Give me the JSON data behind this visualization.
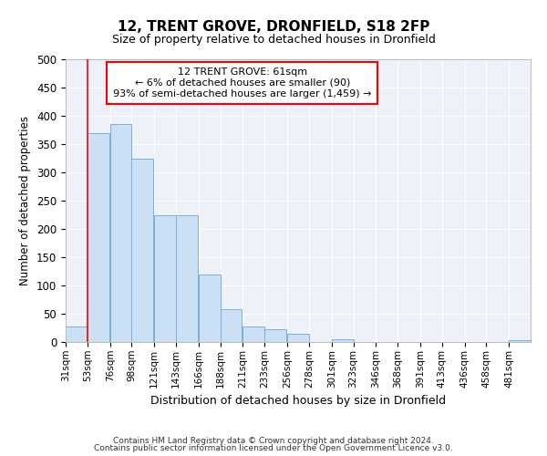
{
  "title": "12, TRENT GROVE, DRONFIELD, S18 2FP",
  "subtitle": "Size of property relative to detached houses in Dronfield",
  "xlabel": "Distribution of detached houses by size in Dronfield",
  "ylabel": "Number of detached properties",
  "bar_color": "#cce0f5",
  "bar_edge_color": "#7ab0d8",
  "background_color": "#eef2f8",
  "grid_color": "#ffffff",
  "footer_line1": "Contains HM Land Registry data © Crown copyright and database right 2024.",
  "footer_line2": "Contains public sector information licensed under the Open Government Licence v3.0.",
  "annotation_title": "12 TRENT GROVE: 61sqm",
  "annotation_line2": "← 6% of detached houses are smaller (90)",
  "annotation_line3": "93% of semi-detached houses are larger (1,459) →",
  "property_line_x": 53,
  "categories": [
    "31sqm",
    "53sqm",
    "76sqm",
    "98sqm",
    "121sqm",
    "143sqm",
    "166sqm",
    "188sqm",
    "211sqm",
    "233sqm",
    "256sqm",
    "278sqm",
    "301sqm",
    "323sqm",
    "346sqm",
    "368sqm",
    "391sqm",
    "413sqm",
    "436sqm",
    "458sqm",
    "481sqm"
  ],
  "bin_edges": [
    31,
    53,
    76,
    98,
    121,
    143,
    166,
    188,
    211,
    233,
    256,
    278,
    301,
    323,
    346,
    368,
    391,
    413,
    436,
    458,
    481
  ],
  "bin_width": 22,
  "values": [
    27,
    370,
    385,
    325,
    225,
    225,
    120,
    58,
    27,
    22,
    15,
    0,
    5,
    0,
    0,
    0,
    0,
    0,
    0,
    0,
    4
  ],
  "ylim": [
    0,
    500
  ],
  "yticks": [
    0,
    50,
    100,
    150,
    200,
    250,
    300,
    350,
    400,
    450,
    500
  ]
}
